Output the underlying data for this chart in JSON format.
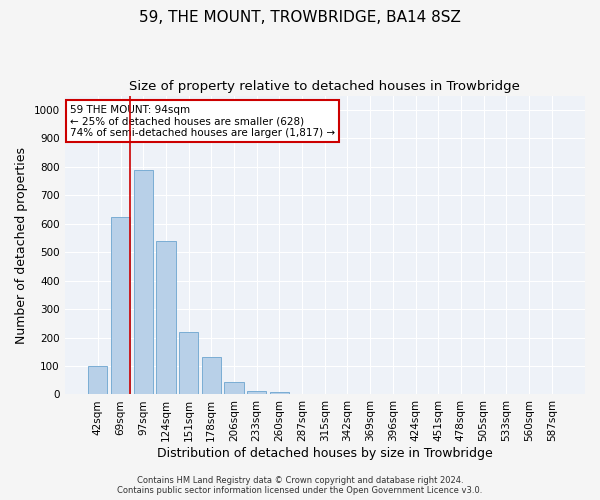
{
  "title": "59, THE MOUNT, TROWBRIDGE, BA14 8SZ",
  "subtitle": "Size of property relative to detached houses in Trowbridge",
  "xlabel": "Distribution of detached houses by size in Trowbridge",
  "ylabel": "Number of detached properties",
  "bar_color": "#b8d0e8",
  "bar_edge_color": "#7aadd4",
  "background_color": "#eef2f8",
  "grid_color": "#ffffff",
  "categories": [
    "42sqm",
    "69sqm",
    "97sqm",
    "124sqm",
    "151sqm",
    "178sqm",
    "206sqm",
    "233sqm",
    "260sqm",
    "287sqm",
    "315sqm",
    "342sqm",
    "369sqm",
    "396sqm",
    "424sqm",
    "451sqm",
    "478sqm",
    "505sqm",
    "533sqm",
    "560sqm",
    "587sqm"
  ],
  "values": [
    100,
    625,
    790,
    540,
    220,
    133,
    43,
    13,
    8,
    3,
    0,
    0,
    0,
    0,
    0,
    0,
    0,
    0,
    0,
    0,
    0
  ],
  "ylim": [
    0,
    1050
  ],
  "yticks": [
    0,
    100,
    200,
    300,
    400,
    500,
    600,
    700,
    800,
    900,
    1000
  ],
  "marker_color": "#cc0000",
  "annotation_title": "59 THE MOUNT: 94sqm",
  "annotation_line1": "← 25% of detached houses are smaller (628)",
  "annotation_line2": "74% of semi-detached houses are larger (1,817) →",
  "annotation_box_color": "#ffffff",
  "annotation_box_edge": "#cc0000",
  "footer1": "Contains HM Land Registry data © Crown copyright and database right 2024.",
  "footer2": "Contains public sector information licensed under the Open Government Licence v3.0.",
  "title_fontsize": 11,
  "subtitle_fontsize": 9.5,
  "axis_label_fontsize": 9,
  "tick_fontsize": 7.5,
  "annotation_fontsize": 7.5
}
